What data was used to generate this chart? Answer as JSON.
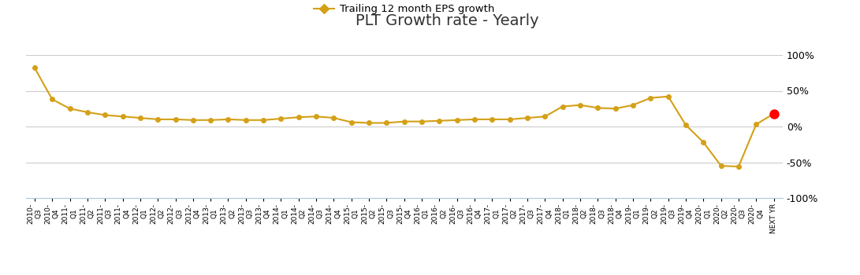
{
  "title": "PLT Growth rate - Yearly",
  "legend_label": "Trailing 12 month EPS growth",
  "line_color": "#D4A017",
  "last_point_color": "#FF0000",
  "background_color": "#FFFFFF",
  "ylim": [
    -1.0,
    1.0
  ],
  "yticks": [
    -1.0,
    -0.5,
    0.0,
    0.5,
    1.0
  ],
  "ytick_labels": [
    "-100%",
    "-50%",
    "0%",
    "50%",
    "100%"
  ],
  "x_labels": [
    "2010-Q3",
    "2010-Q4",
    "2011-Q1",
    "2011-Q2",
    "2011-Q3",
    "2011-Q4",
    "2012-Q1",
    "2012-Q2",
    "2012-Q3",
    "2012-Q4",
    "2013-Q1",
    "2013-Q2",
    "2013-Q3",
    "2013-Q4",
    "2014-Q1",
    "2014-Q2",
    "2014-Q3",
    "2014-Q4",
    "2015-Q1",
    "2015-Q2",
    "2015-Q3",
    "2015-Q4",
    "2016-Q1",
    "2016-Q2",
    "2016-Q3",
    "2016-Q4",
    "2017-Q1",
    "2017-Q2",
    "2017-Q3",
    "2017-Q4",
    "2018-Q1",
    "2018-Q2",
    "2018-Q3",
    "2018-Q4",
    "2019-Q1",
    "2019-Q2",
    "2019-Q3",
    "2019-Q4",
    "2020-Q1",
    "2020-Q2",
    "2020-Q3",
    "2020-Q4",
    "NEXT YR"
  ],
  "values": [
    0.82,
    0.38,
    0.25,
    0.2,
    0.16,
    0.14,
    0.12,
    0.1,
    0.1,
    0.09,
    0.09,
    0.1,
    0.09,
    0.09,
    0.11,
    0.13,
    0.14,
    0.12,
    0.06,
    0.05,
    0.05,
    0.07,
    0.07,
    0.08,
    0.09,
    0.1,
    0.1,
    0.1,
    0.12,
    0.14,
    0.28,
    0.3,
    0.26,
    0.25,
    0.3,
    0.4,
    0.42,
    0.02,
    -0.22,
    -0.55,
    -0.56,
    0.03,
    0.18
  ]
}
